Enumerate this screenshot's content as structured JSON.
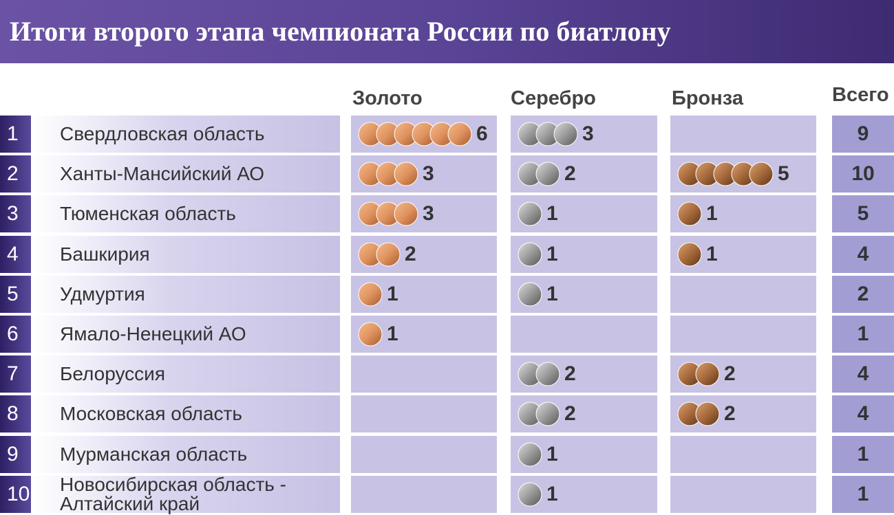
{
  "header": {
    "title": "Итоги второго этапа чемпионата России по биатлону"
  },
  "table": {
    "columns": [
      "Золото",
      "Серебро",
      "Бронза",
      "Всего"
    ],
    "rows": [
      {
        "rank": 1,
        "name": "Свердловская область",
        "gold": 6,
        "silver": 3,
        "bronze": null,
        "total": 9
      },
      {
        "rank": 2,
        "name": "Ханты-Мансийский АО",
        "gold": 3,
        "silver": 2,
        "bronze": 5,
        "total": 10
      },
      {
        "rank": 3,
        "name": "Тюменская область",
        "gold": 3,
        "silver": 1,
        "bronze": 1,
        "total": 5
      },
      {
        "rank": 4,
        "name": "Башкирия",
        "gold": 2,
        "silver": 1,
        "bronze": 1,
        "total": 4
      },
      {
        "rank": 5,
        "name": "Удмуртия",
        "gold": 1,
        "silver": 1,
        "bronze": null,
        "total": 2
      },
      {
        "rank": 6,
        "name": "Ямало-Ненецкий АО",
        "gold": 1,
        "silver": null,
        "bronze": null,
        "total": 1
      },
      {
        "rank": 7,
        "name": "Белоруссия",
        "gold": null,
        "silver": 2,
        "bronze": 2,
        "total": 4
      },
      {
        "rank": 8,
        "name": "Московская область",
        "gold": null,
        "silver": 2,
        "bronze": 2,
        "total": 4
      },
      {
        "rank": 9,
        "name": "Мурманская область",
        "gold": null,
        "silver": 1,
        "bronze": null,
        "total": 1
      },
      {
        "rank": 10,
        "name": "Новосибирская область -\nАлтайский край",
        "gold": null,
        "silver": 1,
        "bronze": null,
        "total": 1
      }
    ]
  }
}
